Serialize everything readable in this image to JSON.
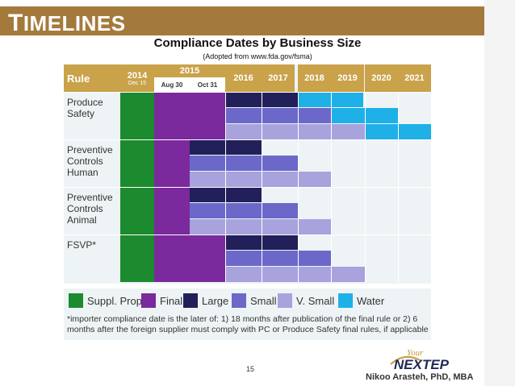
{
  "slide": {
    "title_first": "T",
    "title_rest": "IMELINES",
    "heading": "Compliance Dates by Business Size",
    "subheading": "(Adopted from www.fda.gov/fsma)",
    "page_number": "15",
    "author": "Nikoo Arasteh, PhD, MBA",
    "logo_top": "Your",
    "logo_main": "NEXTEP"
  },
  "table": {
    "rule_header": "Rule",
    "year_2014": "2014",
    "date_2014": "Dec 15",
    "year_2015": "2015",
    "date_aug": "Aug 30",
    "date_oct": "Oct 31",
    "years": [
      "2016",
      "2017",
      "2018",
      "2019",
      "2020",
      "2021"
    ],
    "rows": [
      {
        "label_lines": [
          "Produce",
          "Safety"
        ]
      },
      {
        "label_lines": [
          "Preventive",
          "Controls",
          "Human"
        ]
      },
      {
        "label_lines": [
          "Preventive",
          "Controls",
          "Animal"
        ]
      },
      {
        "label_lines": [
          "FSVP*"
        ]
      }
    ]
  },
  "legend": {
    "items": [
      {
        "label": "Suppl. Prop.",
        "color": "#1c8a2e"
      },
      {
        "label": "Final",
        "color": "#7a2a9c"
      },
      {
        "label": "Large",
        "color": "#22205a"
      },
      {
        "label": "Small",
        "color": "#6b68c9"
      },
      {
        "label": "V. Small",
        "color": "#a8a2dd"
      },
      {
        "label": "Water",
        "color": "#1fb0e8"
      }
    ],
    "note": "*importer compliance date is the later of:  1) 18 months after publication of the final rule or 2) 6 months after the foreign  supplier must comply with PC or Produce Safety final  rules, if applicable"
  },
  "colors": {
    "title_bar": "#a47a3c",
    "header": "#c9a24a",
    "suppl": "#1c8a2e",
    "final": "#7a2a9c",
    "large": "#22205a",
    "small": "#6b68c9",
    "vsmall": "#a8a2dd",
    "water": "#1fb0e8",
    "empty": "#eef4f6"
  }
}
